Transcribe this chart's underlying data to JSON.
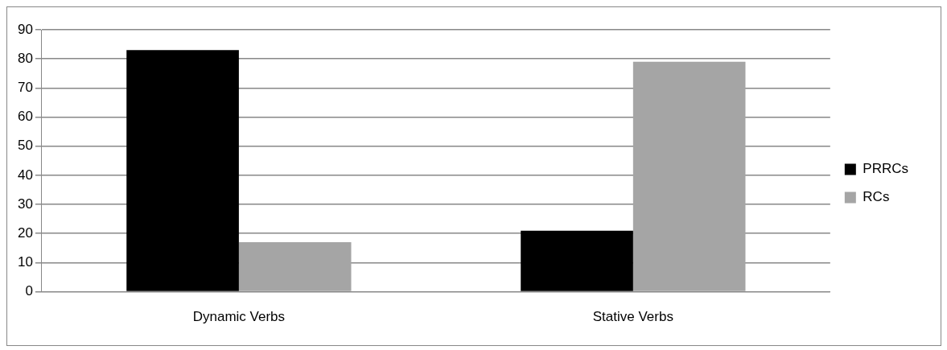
{
  "chart_data": {
    "type": "bar",
    "categories": [
      "Dynamic Verbs",
      "Stative Verbs"
    ],
    "series": [
      {
        "name": "PRRCs",
        "color": "#000000",
        "values": [
          83,
          21
        ]
      },
      {
        "name": "RCs",
        "color": "#a5a5a5",
        "values": [
          17,
          79
        ]
      }
    ],
    "ylim": [
      0,
      90
    ],
    "yticks": [
      0,
      10,
      20,
      30,
      40,
      50,
      60,
      70,
      80,
      90
    ],
    "grid": "y",
    "legend": "right"
  }
}
